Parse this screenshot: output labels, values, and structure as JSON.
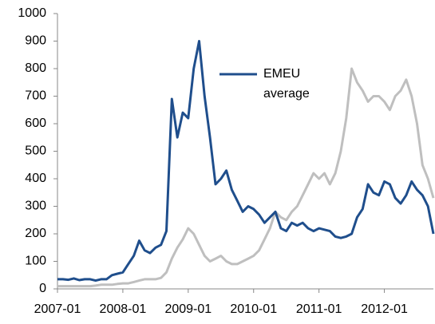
{
  "chart_data": {
    "type": "line",
    "x": [
      "2007-01",
      "2007-02",
      "2007-03",
      "2007-04",
      "2007-05",
      "2007-06",
      "2007-07",
      "2007-08",
      "2007-09",
      "2007-10",
      "2007-11",
      "2007-12",
      "2008-01",
      "2008-02",
      "2008-03",
      "2008-04",
      "2008-05",
      "2008-06",
      "2008-07",
      "2008-08",
      "2008-09",
      "2008-10",
      "2008-11",
      "2008-12",
      "2009-01",
      "2009-02",
      "2009-03",
      "2009-04",
      "2009-05",
      "2009-06",
      "2009-07",
      "2009-08",
      "2009-09",
      "2009-10",
      "2009-11",
      "2009-12",
      "2010-01",
      "2010-02",
      "2010-03",
      "2010-04",
      "2010-05",
      "2010-06",
      "2010-07",
      "2010-08",
      "2010-09",
      "2010-10",
      "2010-11",
      "2010-12",
      "2011-01",
      "2011-02",
      "2011-03",
      "2011-04",
      "2011-05",
      "2011-06",
      "2011-07",
      "2011-08",
      "2011-09",
      "2011-10",
      "2011-11",
      "2011-12",
      "2012-01",
      "2012-02",
      "2012-03",
      "2012-04",
      "2012-05",
      "2012-06",
      "2012-07",
      "2012-08",
      "2012-09",
      "2012-10"
    ],
    "series": [
      {
        "color": "#bfbfbf",
        "values": [
          10,
          10,
          10,
          10,
          10,
          10,
          10,
          12,
          15,
          15,
          15,
          18,
          20,
          20,
          25,
          30,
          35,
          35,
          35,
          40,
          60,
          110,
          150,
          180,
          220,
          200,
          160,
          120,
          100,
          110,
          120,
          100,
          90,
          90,
          100,
          110,
          120,
          140,
          180,
          220,
          280,
          260,
          250,
          280,
          300,
          340,
          380,
          420,
          400,
          420,
          380,
          420,
          500,
          620,
          800,
          750,
          720,
          680,
          700,
          700,
          680,
          650,
          700,
          720,
          760,
          700,
          600,
          450,
          400,
          330
        ]
      },
      {
        "name": "EMEU average",
        "color": "#1f4e8c",
        "values": [
          35,
          35,
          33,
          38,
          32,
          35,
          35,
          30,
          35,
          35,
          50,
          55,
          60,
          90,
          120,
          175,
          140,
          130,
          150,
          160,
          210,
          690,
          550,
          640,
          620,
          800,
          900,
          700,
          550,
          380,
          400,
          430,
          360,
          320,
          280,
          300,
          290,
          270,
          240,
          260,
          280,
          220,
          210,
          240,
          230,
          240,
          220,
          210,
          220,
          215,
          210,
          190,
          185,
          190,
          200,
          260,
          290,
          380,
          350,
          340,
          390,
          380,
          330,
          310,
          340,
          390,
          360,
          340,
          300,
          200
        ]
      }
    ],
    "xlim": [
      "2007-01",
      "2012-10"
    ],
    "xticks": [
      "2007-01",
      "2008-01",
      "2009-01",
      "2010-01",
      "2011-01",
      "2012-01"
    ],
    "ylim": [
      0,
      1000
    ],
    "yticks": [
      0,
      100,
      200,
      300,
      400,
      500,
      600,
      700,
      800,
      900,
      1000
    ],
    "grid": false
  }
}
